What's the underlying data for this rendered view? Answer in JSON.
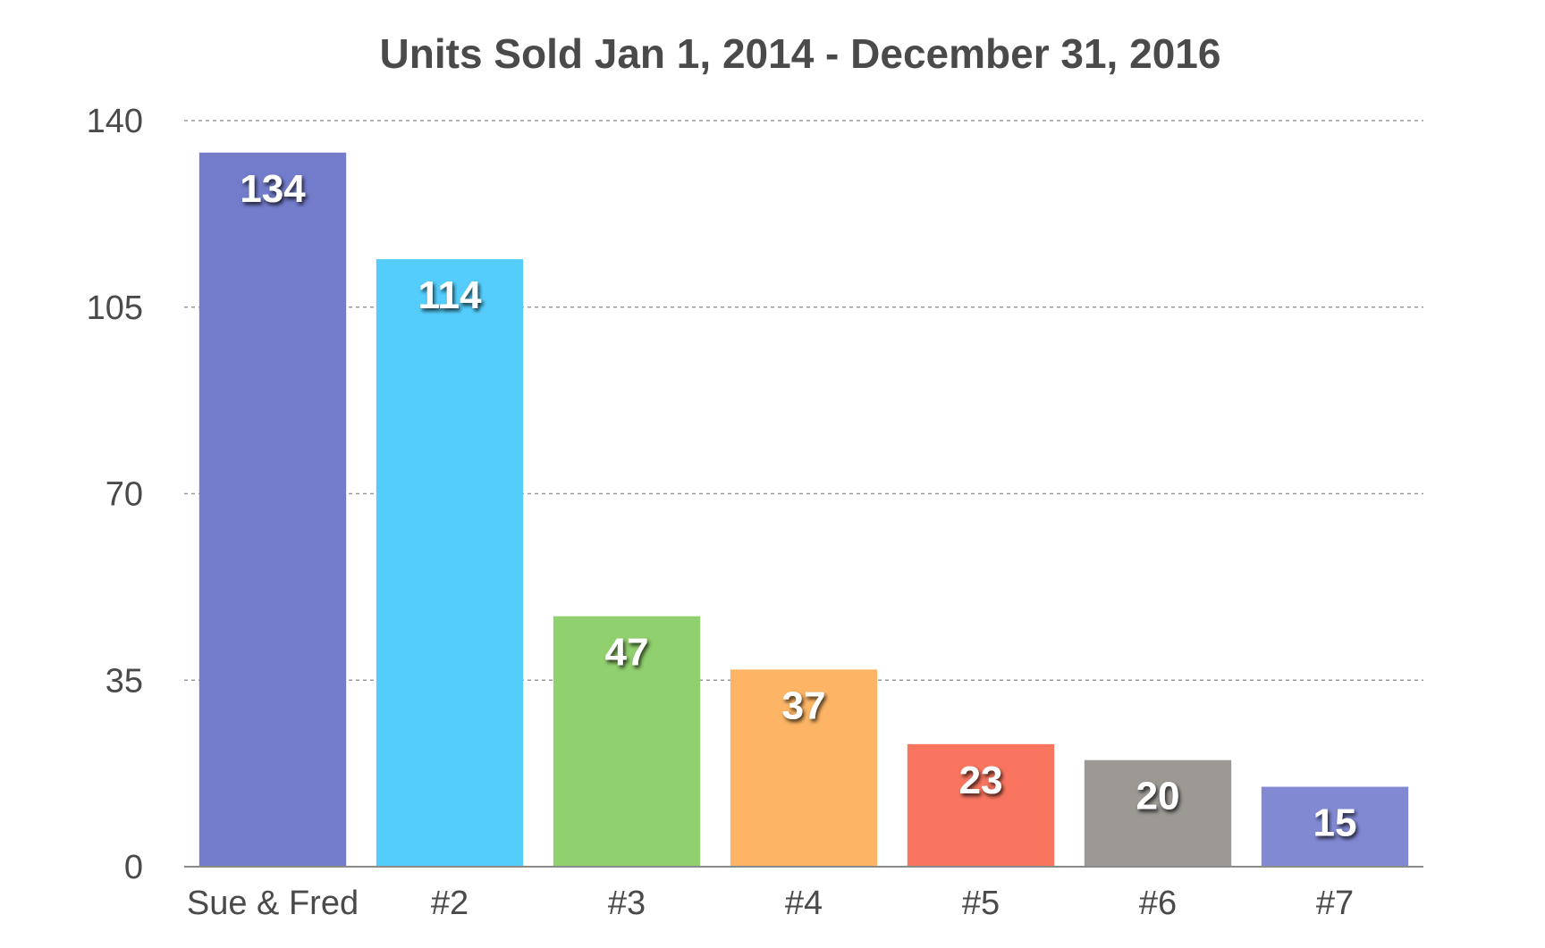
{
  "chart_data": {
    "type": "bar",
    "title": "Units Sold Jan 1, 2014 - December 31, 2016",
    "xlabel": "",
    "ylabel": "",
    "categories": [
      "Sue & Fred",
      "#2",
      "#3",
      "#4",
      "#5",
      "#6",
      "#7"
    ],
    "values": [
      134,
      114,
      47,
      37,
      23,
      20,
      15
    ],
    "colors": [
      "#737ccb",
      "#55cdfc",
      "#90d06e",
      "#fdb565",
      "#f97560",
      "#9c9995",
      "#8189d3"
    ],
    "ylim": [
      0,
      140
    ],
    "yticks": [
      0,
      35,
      70,
      105,
      140
    ],
    "grid": true,
    "legend": "none",
    "data_labels": true
  }
}
